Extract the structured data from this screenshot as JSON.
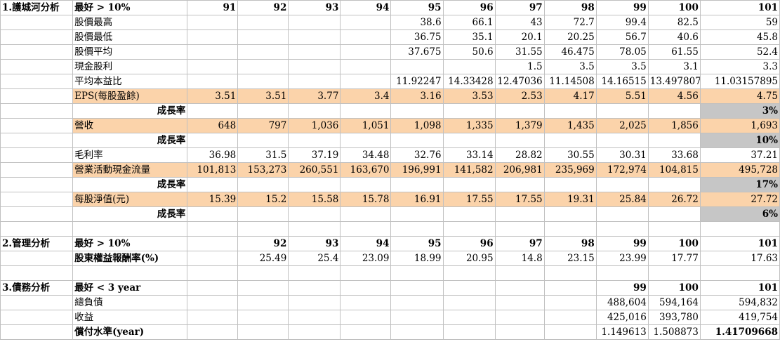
{
  "columns": [
    "A",
    "B",
    "C",
    "D",
    "E",
    "F",
    "G",
    "H",
    "I",
    "J",
    "K",
    "L"
  ],
  "rows": [
    {
      "cells": [
        "1.護城河分析",
        "最好 > 10%",
        "91",
        "92",
        "93",
        "94",
        "95",
        "96",
        "97",
        "98",
        "99",
        "100",
        "101"
      ]
    },
    {
      "cells": [
        "",
        "股價最高",
        "",
        "",
        "",
        "",
        "38.6",
        "66.1",
        "43",
        "72.7",
        "99.4",
        "82.5",
        "59"
      ]
    },
    {
      "cells": [
        "",
        "股價最低",
        "",
        "",
        "",
        "",
        "36.75",
        "35.1",
        "20.1",
        "20.25",
        "56.7",
        "40.6",
        "45.8"
      ]
    },
    {
      "cells": [
        "",
        "股價平均",
        "",
        "",
        "",
        "",
        "37.675",
        "50.6",
        "31.55",
        "46.475",
        "78.05",
        "61.55",
        "52.4"
      ]
    },
    {
      "cells": [
        "",
        "現金股利",
        "",
        "",
        "",
        "",
        "",
        "",
        "1.5",
        "3.5",
        "3.5",
        "3.1",
        "3.3"
      ]
    },
    {
      "cells": [
        "",
        "平均本益比",
        "",
        "",
        "",
        "",
        "11.92247",
        "14.33428",
        "12.47036",
        "11.14508",
        "14.16515",
        "13.497807",
        "11.03157895"
      ]
    },
    {
      "cells": [
        "",
        "EPS(每股盈餘)",
        "3.51",
        "3.51",
        "3.77",
        "3.4",
        "3.16",
        "3.53",
        "2.53",
        "4.17",
        "5.51",
        "4.56",
        "4.75"
      ]
    },
    {
      "cells": [
        "",
        "成長率",
        "",
        "",
        "",
        "",
        "",
        "",
        "",
        "",
        "",
        "",
        "3%"
      ]
    },
    {
      "cells": [
        "",
        "營收",
        "648",
        "797",
        "1,036",
        "1,051",
        "1,098",
        "1,335",
        "1,379",
        "1,435",
        "2,025",
        "1,856",
        "1,693"
      ]
    },
    {
      "cells": [
        "",
        "成長率",
        "",
        "",
        "",
        "",
        "",
        "",
        "",
        "",
        "",
        "",
        "10%"
      ]
    },
    {
      "cells": [
        "",
        "毛利率",
        "36.98",
        "31.5",
        "37.19",
        "34.48",
        "32.76",
        "33.14",
        "28.82",
        "30.55",
        "30.31",
        "33.68",
        "37.21"
      ]
    },
    {
      "cells": [
        "",
        "營業活動現金流量",
        "101,813",
        "153,273",
        "260,551",
        "163,670",
        "196,991",
        "141,582",
        "206,981",
        "235,969",
        "172,974",
        "104,815",
        "495,728"
      ]
    },
    {
      "cells": [
        "",
        "成長率",
        "",
        "",
        "",
        "",
        "",
        "",
        "",
        "",
        "",
        "",
        "17%"
      ]
    },
    {
      "cells": [
        "",
        "每股淨值(元)",
        "15.39",
        "15.2",
        "15.58",
        "15.78",
        "16.91",
        "17.55",
        "17.55",
        "19.31",
        "25.84",
        "26.72",
        "27.72"
      ]
    },
    {
      "cells": [
        "",
        "成長率",
        "",
        "",
        "",
        "",
        "",
        "",
        "",
        "",
        "",
        "",
        "6%"
      ]
    },
    {
      "cells": [
        "",
        "",
        "",
        "",
        "",
        "",
        "",
        "",
        "",
        "",
        "",
        "",
        ""
      ]
    },
    {
      "cells": [
        "2.管理分析",
        "最好 > 10%",
        "",
        "92",
        "93",
        "94",
        "95",
        "96",
        "97",
        "98",
        "99",
        "100",
        "101"
      ]
    },
    {
      "cells": [
        "",
        "股東權益報酬率(%)",
        "",
        "25.49",
        "25.4",
        "23.09",
        "18.99",
        "20.95",
        "14.8",
        "23.15",
        "23.99",
        "17.77",
        "17.63"
      ]
    },
    {
      "cells": [
        "",
        "",
        "",
        "",
        "",
        "",
        "",
        "",
        "",
        "",
        "",
        "",
        ""
      ]
    },
    {
      "cells": [
        "3.債務分析",
        "最好 < 3 year",
        "",
        "",
        "",
        "",
        "",
        "",
        "",
        "",
        "99",
        "100",
        "101"
      ]
    },
    {
      "cells": [
        "",
        "總負債",
        "",
        "",
        "",
        "",
        "",
        "",
        "",
        "",
        "488,604",
        "594,164",
        "594,832"
      ]
    },
    {
      "cells": [
        "",
        "收益",
        "",
        "",
        "",
        "",
        "",
        "",
        "",
        "",
        "425,016",
        "393,780",
        "419,754"
      ]
    },
    {
      "cells": [
        "",
        "償付水準(year)",
        "",
        "",
        "",
        "",
        "",
        "",
        "",
        "",
        "1.149613",
        "1.508873",
        "1.41709668"
      ]
    }
  ]
}
